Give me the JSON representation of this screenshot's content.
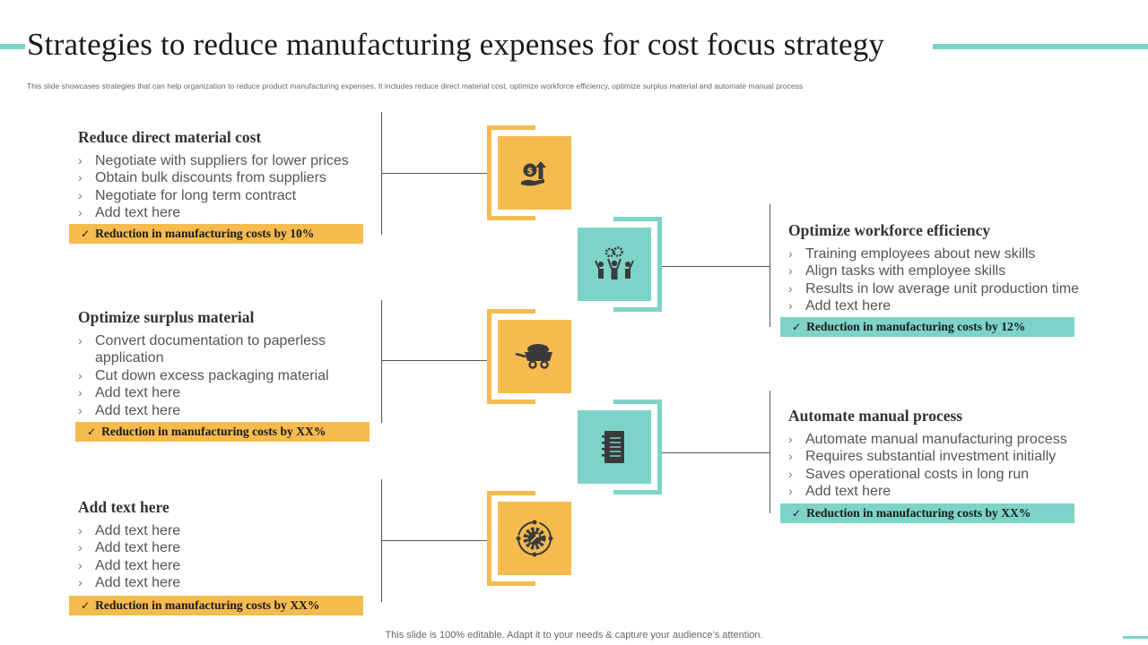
{
  "header": {
    "title": "Strategies to reduce manufacturing expenses for cost focus strategy",
    "subtitle": "This slide showcases strategies that can help organization to reduce product manufacturing expenses. It includes reduce direct material cost, optimize workforce efficiency, optimize surplus material and automate manual process"
  },
  "colors": {
    "accent_teal": "#7dd3c7",
    "accent_yellow": "#f5bb4f",
    "icon_dark": "#3a3a3a"
  },
  "sections": [
    {
      "title": "Reduce direct material cost",
      "bullets": [
        "Negotiate with suppliers for lower prices",
        "Obtain bulk discounts from suppliers",
        "Negotiate for long term contract",
        "Add text here"
      ],
      "banner": "Reduction in manufacturing costs by 10%",
      "icon": "money-growth-icon"
    },
    {
      "title": "Optimize workforce efficiency",
      "bullets": [
        "Training employees about new skills",
        "Align tasks with employee skills",
        "Results in low average unit production time",
        "Add text here"
      ],
      "banner": "Reduction in manufacturing costs by 12%",
      "icon": "team-gears-icon"
    },
    {
      "title": "Optimize surplus material",
      "bullets": [
        "Convert documentation to paperless application",
        "Cut down excess packaging material",
        "Add text here",
        "Add text here"
      ],
      "banner": "Reduction in manufacturing costs by XX%",
      "icon": "mining-cart-icon"
    },
    {
      "title": "Automate manual process",
      "bullets": [
        "Automate manual manufacturing process",
        "Requires substantial investment initially",
        "Saves operational costs in long run",
        "Add text here"
      ],
      "banner": "Reduction in manufacturing costs by XX%",
      "icon": "notebook-icon"
    },
    {
      "title": "Add text here",
      "bullets": [
        "Add text here",
        "Add text here",
        "Add text here",
        "Add text here"
      ],
      "banner": "Reduction in manufacturing costs by XX%",
      "icon": "gear-cycle-icon"
    }
  ],
  "footer": {
    "text": "This slide is 100% editable. Adapt it to your needs & capture your audience’s attention."
  }
}
